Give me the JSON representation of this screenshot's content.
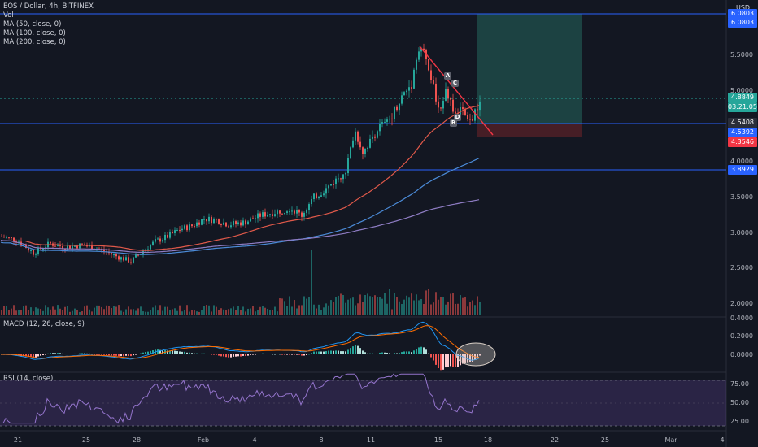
{
  "legend": {
    "symbol": "EOS / Dollar, 4h, BITFINEX",
    "vol": "Vol",
    "ma50": "MA (50, close, 0)",
    "ma100": "MA (100, close, 0)",
    "ma200": "MA (200, close, 0)"
  },
  "currency": "USD",
  "macd_label": "MACD (12, 26, close, 9)",
  "rsi_label": "RSI (14, close)",
  "price_axis": [
    "5.5000",
    "5.0000",
    "4.5000",
    "4.0000",
    "3.5000",
    "3.0000",
    "2.5000",
    "2.0000"
  ],
  "macd_axis": [
    "0.4000",
    "0.2000",
    "0.0000"
  ],
  "rsi_axis": [
    "75.00",
    "50.00",
    "25.00"
  ],
  "time_axis": [
    "21",
    "25",
    "28",
    "Feb",
    "4",
    "8",
    "11",
    "15",
    "18",
    "22",
    "25",
    "Mar",
    "4"
  ],
  "price_tags": {
    "top_hidden": "6.0803",
    "top": "6.0803",
    "current": "4.8849",
    "countdown": "03:21:05",
    "hline": "4.5408",
    "hline2": "4.5392",
    "stop": "4.3546",
    "support": "3.8929"
  },
  "pattern_labels": [
    "A",
    "C",
    "B",
    "D"
  ],
  "colors": {
    "bg": "#131722",
    "up": "#26a69a",
    "down": "#ef5350",
    "ma50": "#f0634f",
    "ma100": "#4b8bd8",
    "ma200": "#8e7cc3",
    "hline": "#2962ff",
    "target_zone": "#1f4b4b",
    "stop_zone": "#4a1e24",
    "macd": "#2196f3",
    "signal": "#ff6d00",
    "rsi": "#7e57c2"
  },
  "chart_data": {
    "type": "candlestick",
    "title": "EOS / Dollar, 4h, BITFINEX",
    "ylim": [
      1.85,
      6.2
    ],
    "key_prices": [
      {
        "name": "hline",
        "value": 6.0803
      },
      {
        "name": "hline",
        "value": 4.5408
      },
      {
        "name": "hline",
        "value": 3.8929
      }
    ],
    "approx_closes": [
      2.95,
      2.9,
      2.8,
      2.65,
      2.55,
      2.7,
      2.85,
      2.9,
      2.8,
      2.75,
      2.6,
      2.5,
      2.7,
      2.9,
      2.95,
      3.0,
      3.1,
      3.2,
      3.1,
      3.2,
      3.3,
      3.3,
      3.4,
      3.3,
      3.5,
      3.7,
      3.9,
      4.3,
      4.5,
      4.6,
      4.5,
      4.9,
      5.3,
      5.6,
      5.2,
      4.8,
      4.9,
      4.5,
      4.6,
      4.5,
      4.7,
      4.88
    ]
  }
}
